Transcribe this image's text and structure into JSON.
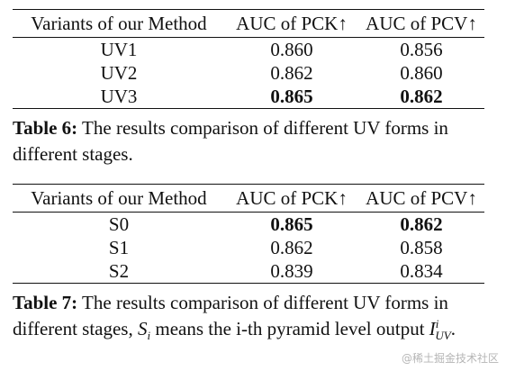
{
  "table6": {
    "headers": [
      "Variants of our Method",
      "AUC of PCK↑",
      "AUC of PCV↑"
    ],
    "rows": [
      {
        "variant": "UV1",
        "pck": "0.860",
        "pcv": "0.856"
      },
      {
        "variant": "UV2",
        "pck": "0.862",
        "pcv": "0.860"
      },
      {
        "variant": "UV3",
        "pck": "0.865",
        "pcv": "0.862"
      }
    ],
    "caption_label": "Table 6:",
    "caption_text": "The results comparison of different UV forms in different stages."
  },
  "table7": {
    "headers": [
      "Variants of our Method",
      "AUC of PCK↑",
      "AUC of PCV↑"
    ],
    "rows": [
      {
        "variant": "S0",
        "pck": "0.865",
        "pcv": "0.862"
      },
      {
        "variant": "S1",
        "pck": "0.862",
        "pcv": "0.858"
      },
      {
        "variant": "S2",
        "pck": "0.839",
        "pcv": "0.834"
      }
    ],
    "caption_label": "Table 7:",
    "caption_text_1": "The results comparison of different UV forms in different stages,",
    "caption_math_s": "S",
    "caption_math_s_sub": "i",
    "caption_text_2": "means the i-th pyramid level output",
    "caption_math_i": "I",
    "caption_math_i_sup": "i",
    "caption_math_i_sub": "UV",
    "caption_text_3": "."
  },
  "watermark": "@稀土掘金技术社区"
}
